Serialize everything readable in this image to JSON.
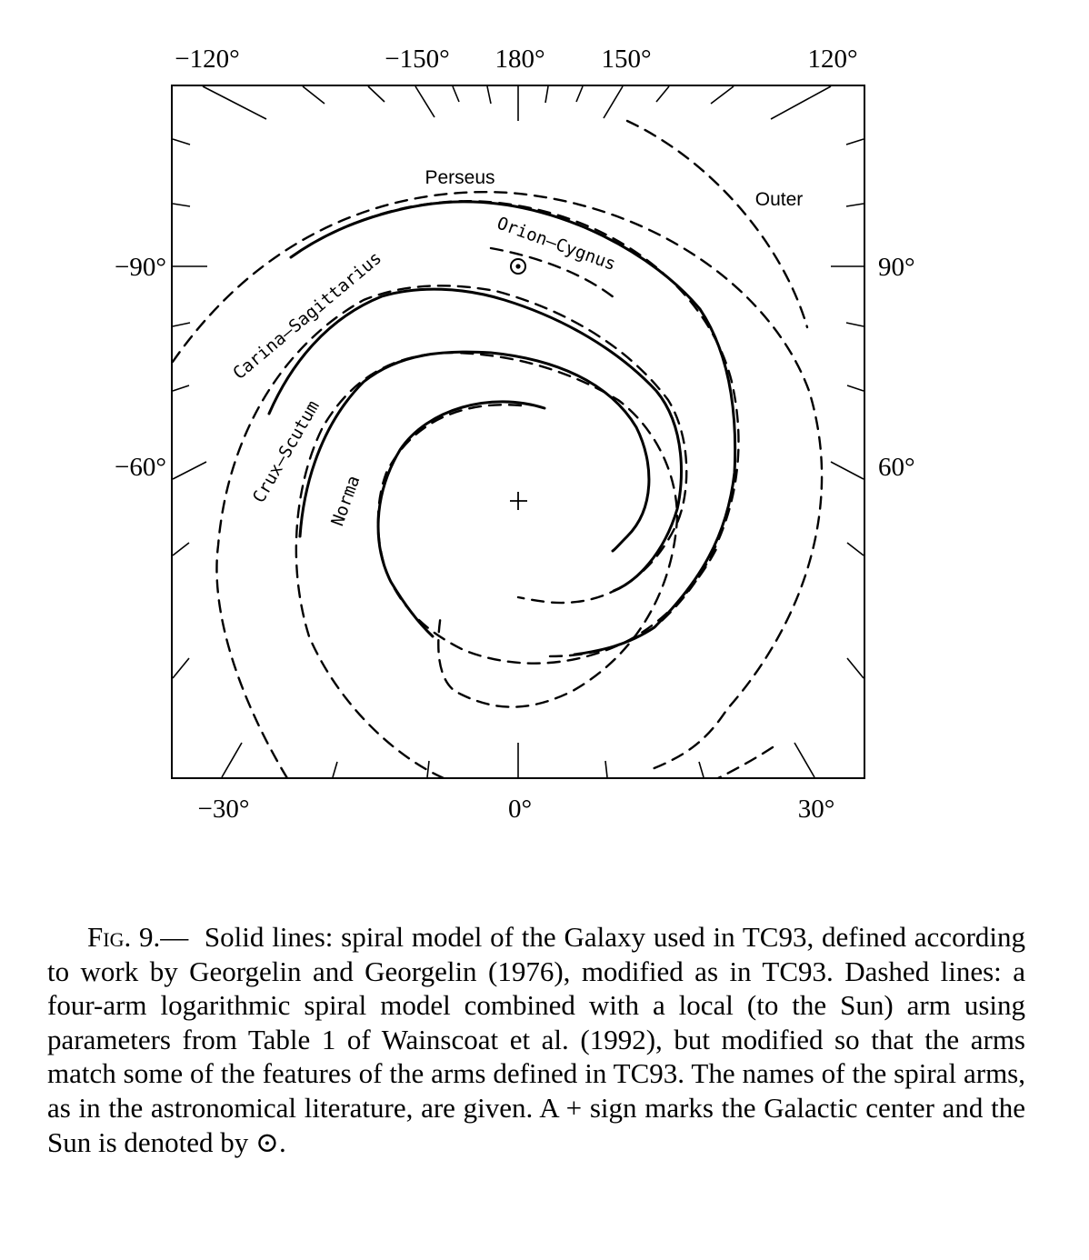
{
  "figure": {
    "top_labels": [
      "−120°",
      "−150°",
      "180°",
      "150°",
      "120°"
    ],
    "bottom_labels": [
      "−30°",
      "0°",
      "30°"
    ],
    "left_labels": [
      "−90°",
      "−60°"
    ],
    "right_labels": [
      "90°",
      "60°"
    ],
    "arm_labels": {
      "perseus": "Perseus",
      "outer": "Outer",
      "orion_cygnus": "Orion–Cygnus",
      "carina_sagittarius": "Carina–Sagittarius",
      "crux_scutum": "Crux–Scutum",
      "norma": "Norma"
    },
    "line_color": "#000000"
  },
  "caption": {
    "fig_label": "Fig. 9.—",
    "text": "Solid lines: spiral model of the Galaxy used in TC93, defined according to work by Georgelin and Georgelin (1976), modified as in TC93. Dashed lines: a four-arm logarithmic spiral model combined with a local (to the Sun) arm using parameters from Table 1 of Wainscoat et al. (1992), but modified so that the arms match some of the features of the arms defined in TC93. The names of the spiral arms, as in the astronomical literature, are given. A + sign marks the Galactic center and the Sun is denoted by ⊙."
  }
}
